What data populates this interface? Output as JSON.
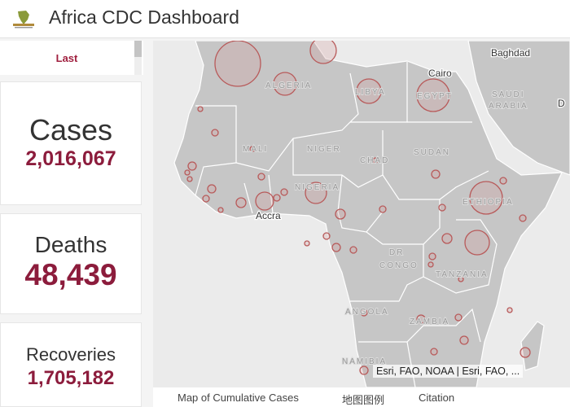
{
  "header": {
    "title": "Africa CDC Dashboard"
  },
  "panel": {
    "label": "Last"
  },
  "cards": [
    {
      "title": "Cases",
      "value": "2,016,067"
    },
    {
      "title": "Deaths",
      "value": "48,439"
    },
    {
      "title": "Recoveries",
      "value": "1,705,182"
    }
  ],
  "map": {
    "labels": [
      "Baghdad",
      "Cairo",
      "ALGERIA",
      "LIBYA",
      "EGYPT",
      "SAUDI",
      "ARABIA",
      "D",
      "MALI",
      "NIGER",
      "CHAD",
      "SUDAN",
      "NIGERIA",
      "ETHIOPIA",
      "Accra",
      "DR",
      "CONGO",
      "TANZANIA",
      "ANGOLA",
      "ZAMBIA",
      "NAMIBIA"
    ],
    "attribution": "Esri, FAO, NOAA | Esri, FAO, ..."
  },
  "tabs": [
    "Map of Cumulative Cases",
    "地图图例",
    "Citation"
  ]
}
